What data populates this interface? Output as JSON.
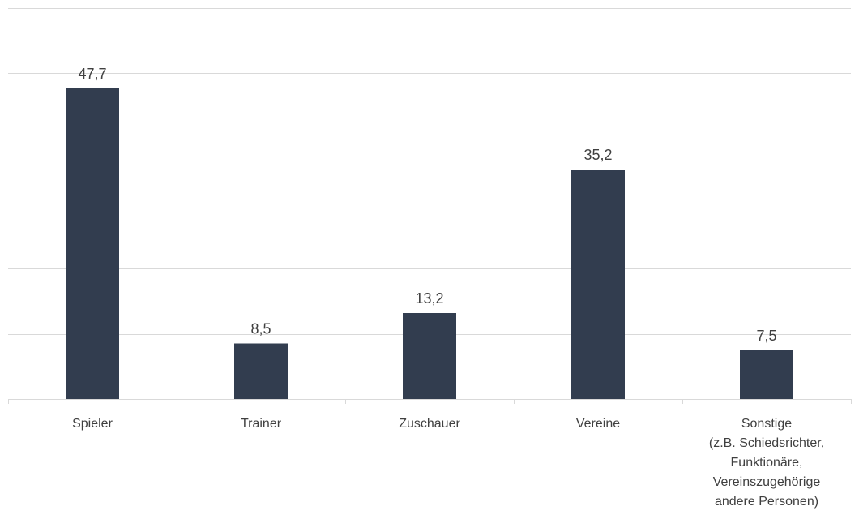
{
  "chart_data": {
    "type": "bar",
    "categories": [
      [
        "Spieler"
      ],
      [
        "Trainer"
      ],
      [
        "Zuschauer"
      ],
      [
        "Vereine"
      ],
      [
        "Sonstige",
        "(z.B. Schiedsrichter,",
        "Funktionäre,",
        "Vereinszugehörige",
        "andere Personen)"
      ]
    ],
    "values": [
      47.7,
      8.5,
      13.2,
      35.2,
      7.5
    ],
    "value_labels": [
      "47,7",
      "8,5",
      "13,2",
      "35,2",
      "7,5"
    ],
    "ylim": [
      0,
      60
    ],
    "grid": true,
    "bar_color": "#323d4f",
    "grid_color": "#d9d9d9",
    "text_color": "#404040"
  }
}
